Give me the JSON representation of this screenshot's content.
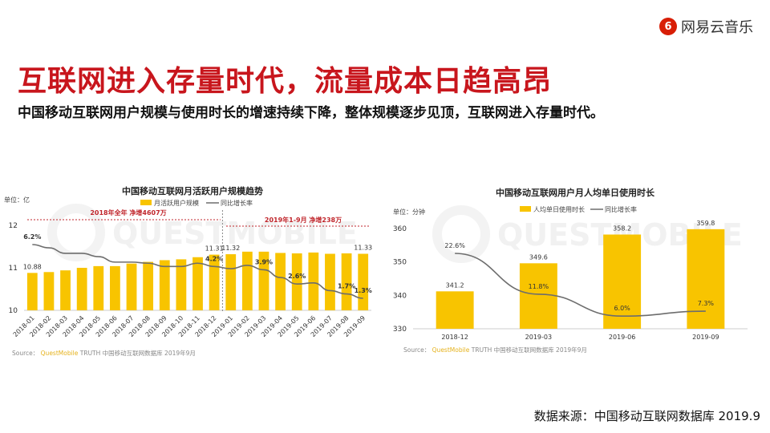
{
  "logo": {
    "mark": "6",
    "name": "网易云音乐"
  },
  "title": "互联网进入存量时代，流量成本日趋高昂",
  "subtitle": "中国移动互联网用户规模与使用时长的增速持续下降，整体规模逐步见顶，互联网进入存量时代。",
  "footer": "数据来源：中国移动互联网数据库 2019.9",
  "colors": {
    "bar": "#f8c400",
    "line": "#6d6d6d",
    "title": "#c8161d",
    "annotation": "#c0262c"
  },
  "chart_data": [
    {
      "type": "bar+line",
      "title": "中国移动互联网月活跃用户规模趋势",
      "unit": "单位：亿",
      "legend": [
        "月活跃用户规模",
        "同比增长率"
      ],
      "legend_placement": "top",
      "categories": [
        "2018-01",
        "2018-02",
        "2018-03",
        "2018-04",
        "2018-05",
        "2018-06",
        "2018-07",
        "2018-08",
        "2018-09",
        "2018-10",
        "2018-11",
        "2018-12",
        "2019-01",
        "2019-02",
        "2019-03",
        "2019-04",
        "2019-05",
        "2019-06",
        "2019-07",
        "2019-08",
        "2019-09"
      ],
      "series": [
        {
          "name": "月活跃用户规模",
          "type": "bar",
          "values": [
            10.88,
            10.9,
            10.94,
            11.0,
            11.04,
            11.04,
            11.1,
            11.14,
            11.18,
            11.2,
            11.25,
            11.31,
            11.32,
            11.38,
            11.38,
            11.35,
            11.34,
            11.36,
            11.33,
            11.34,
            11.33
          ]
        },
        {
          "name": "同比增长率",
          "type": "line",
          "values": [
            6.2,
            5.9,
            5.4,
            5.4,
            5.1,
            4.6,
            4.6,
            4.5,
            4.2,
            4.2,
            4.5,
            4.2,
            4.0,
            4.3,
            3.9,
            3.2,
            2.6,
            2.7,
            2.0,
            1.7,
            1.3
          ]
        }
      ],
      "bar_labels": {
        "0": "10.88",
        "11": "11.31",
        "12": "11.32",
        "20": "11.33"
      },
      "line_labels": {
        "0": "6.2%",
        "11": "4.2%",
        "14": "3.9%",
        "16": "2.6%",
        "19": "1.7%",
        "20": "1.3%"
      },
      "yticks": [
        "10",
        "11",
        "12"
      ],
      "ylim": [
        10,
        12
      ],
      "annotations": [
        "2018年全年 净增4607万",
        "2019年1-9月 净增238万"
      ],
      "source_prefix": "Source：",
      "source_brand": "QuestMobile",
      "source_text": "TRUTH 中国移动互联网数据库 2019年9月",
      "watermark": "QUESTMOBILE"
    },
    {
      "type": "bar+line",
      "title": "中国移动互联网用户月人均单日使用时长",
      "unit": "单位：分钟",
      "legend": [
        "人均单日使用时长",
        "同比增长率"
      ],
      "legend_placement": "top",
      "categories": [
        "2018-12",
        "2019-03",
        "2019-06",
        "2019-09"
      ],
      "series": [
        {
          "name": "人均单日使用时长",
          "type": "bar",
          "values": [
            341.2,
            349.6,
            358.2,
            359.8
          ]
        },
        {
          "name": "同比增长率",
          "type": "line",
          "values": [
            22.6,
            11.8,
            6.0,
            7.3
          ]
        }
      ],
      "bar_labels": {
        "0": "341.2",
        "1": "349.6",
        "2": "358.2",
        "3": "359.8"
      },
      "line_labels": {
        "0": "22.6%",
        "1": "11.8%",
        "2": "6.0%",
        "3": "7.3%"
      },
      "yticks": [
        "330",
        "340",
        "350",
        "360"
      ],
      "ylim": [
        330,
        360
      ],
      "source_prefix": "Source：",
      "source_brand": "QuestMobile",
      "source_text": "TRUTH 中国移动互联网数据库 2019年9月",
      "watermark": "QUESTMOBILE"
    }
  ]
}
